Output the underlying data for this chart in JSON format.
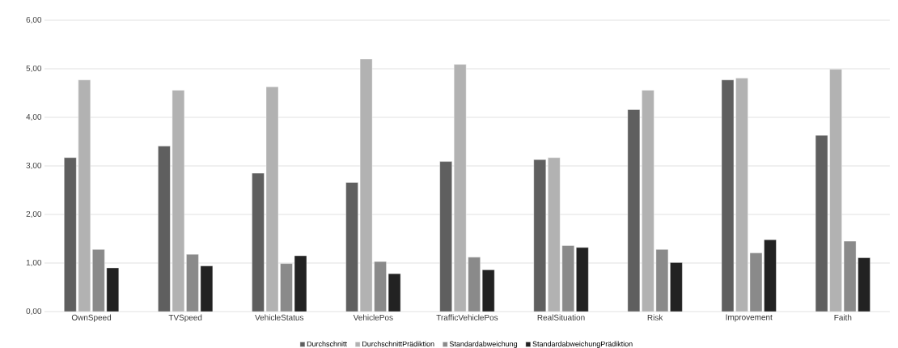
{
  "chart_data": {
    "type": "bar",
    "categories": [
      "OwnSpeed",
      "TVSpeed",
      "VehicleStatus",
      "VehiclePos",
      "TrafficVehiclePos",
      "RealSituation",
      "Risk",
      "Improvement",
      "Faith"
    ],
    "series": [
      {
        "name": "Durchschnitt",
        "color": "#5f5f5f",
        "values": [
          3.17,
          3.41,
          2.85,
          2.66,
          3.09,
          3.13,
          4.16,
          4.77,
          3.63
        ]
      },
      {
        "name": "DurchschnittPrädiktion",
        "color": "#b2b2b2",
        "values": [
          4.77,
          4.56,
          4.63,
          5.2,
          5.09,
          3.17,
          4.56,
          4.81,
          4.99
        ]
      },
      {
        "name": "Standardabweichung",
        "color": "#8a8a8a",
        "values": [
          1.28,
          1.18,
          0.99,
          1.03,
          1.12,
          1.36,
          1.28,
          1.21,
          1.45
        ]
      },
      {
        "name": "StandardabweichungPrädiktion",
        "color": "#222222",
        "values": [
          0.9,
          0.94,
          1.15,
          0.78,
          0.86,
          1.32,
          1.01,
          1.48,
          1.11
        ]
      }
    ],
    "ylim": [
      0,
      6
    ],
    "yticks": [
      {
        "value": 0,
        "label": "0,00"
      },
      {
        "value": 1,
        "label": "1,00"
      },
      {
        "value": 2,
        "label": "2,00"
      },
      {
        "value": 3,
        "label": "3,00"
      },
      {
        "value": 4,
        "label": "4,00"
      },
      {
        "value": 5,
        "label": "5,00"
      },
      {
        "value": 6,
        "label": "6,00"
      }
    ],
    "grid": "y",
    "legend": "bottom"
  }
}
